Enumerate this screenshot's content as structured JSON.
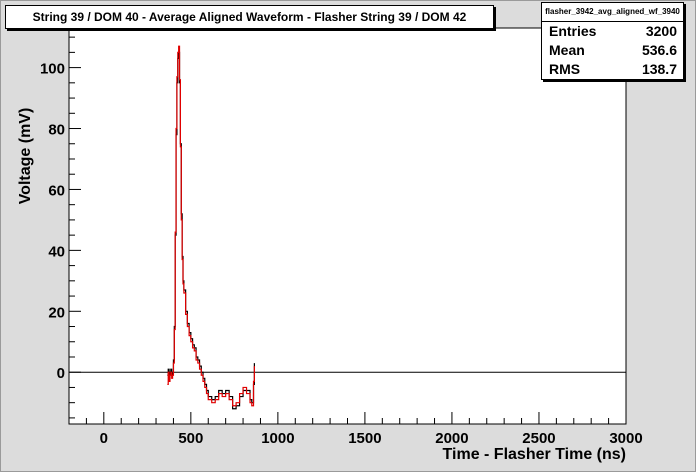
{
  "title": "String 39 / DOM 40 - Average Aligned Waveform - Flasher String 39 / DOM 42",
  "stats": {
    "name": "flasher_3942_avg_aligned_wf_3940",
    "rows": [
      {
        "label": "Entries",
        "value": "3200"
      },
      {
        "label": "Mean",
        "value": "536.6"
      },
      {
        "label": "RMS",
        "value": "138.7"
      }
    ]
  },
  "chart_data": {
    "type": "line",
    "title": "String 39 / DOM 40 - Average Aligned Waveform - Flasher String 39 / DOM 42",
    "xlabel": "Time - Flasher Time (ns)",
    "ylabel": "Voltage (mV)",
    "xlim": [
      -200,
      3000
    ],
    "ylim": [
      -17,
      113
    ],
    "x_ticks": [
      0,
      500,
      1000,
      1500,
      2000,
      2500,
      3000
    ],
    "y_ticks": [
      0,
      20,
      40,
      60,
      80,
      100
    ],
    "zero_line": true,
    "grid": false,
    "series": [
      {
        "color": "#000000",
        "x": [
          365,
          370,
          375,
          380,
          385,
          390,
          395,
          400,
          405,
          410,
          415,
          420,
          425,
          430,
          435,
          440,
          445,
          450,
          455,
          460,
          470,
          480,
          490,
          500,
          510,
          520,
          530,
          540,
          550,
          560,
          570,
          580,
          590,
          600,
          620,
          640,
          660,
          680,
          700,
          720,
          740,
          760,
          780,
          800,
          820,
          840,
          850,
          860,
          865
        ],
        "y": [
          -1,
          1,
          -2,
          0,
          1,
          -1,
          0,
          4,
          15,
          45,
          78,
          95,
          103,
          105,
          95,
          75,
          52,
          38,
          30,
          27,
          20,
          16,
          13,
          11,
          9,
          8,
          5,
          4,
          2,
          0,
          -2,
          -4,
          -6,
          -8,
          -9,
          -8,
          -6,
          -7,
          -6,
          -8,
          -12,
          -11,
          -8,
          -6,
          -6,
          -9,
          -10,
          -4,
          3
        ]
      },
      {
        "color": "#e00000",
        "x": [
          365,
          370,
          375,
          380,
          385,
          390,
          395,
          400,
          405,
          410,
          415,
          420,
          425,
          430,
          435,
          440,
          445,
          450,
          455,
          460,
          470,
          480,
          490,
          500,
          510,
          520,
          530,
          540,
          550,
          560,
          570,
          580,
          590,
          600,
          620,
          640,
          660,
          680,
          700,
          720,
          740,
          760,
          780,
          800,
          820,
          840,
          850,
          860,
          865
        ],
        "y": [
          -4,
          0,
          -3,
          -1,
          0,
          -2,
          -1,
          3,
          14,
          46,
          80,
          97,
          105,
          107,
          96,
          74,
          50,
          37,
          29,
          26,
          19,
          15,
          12,
          10,
          8,
          7,
          4,
          3,
          1,
          -1,
          -3,
          -5,
          -7,
          -9,
          -10,
          -9,
          -7,
          -8,
          -7,
          -9,
          -11,
          -10,
          -7,
          -5,
          -7,
          -10,
          -11,
          -3,
          2
        ]
      }
    ]
  }
}
